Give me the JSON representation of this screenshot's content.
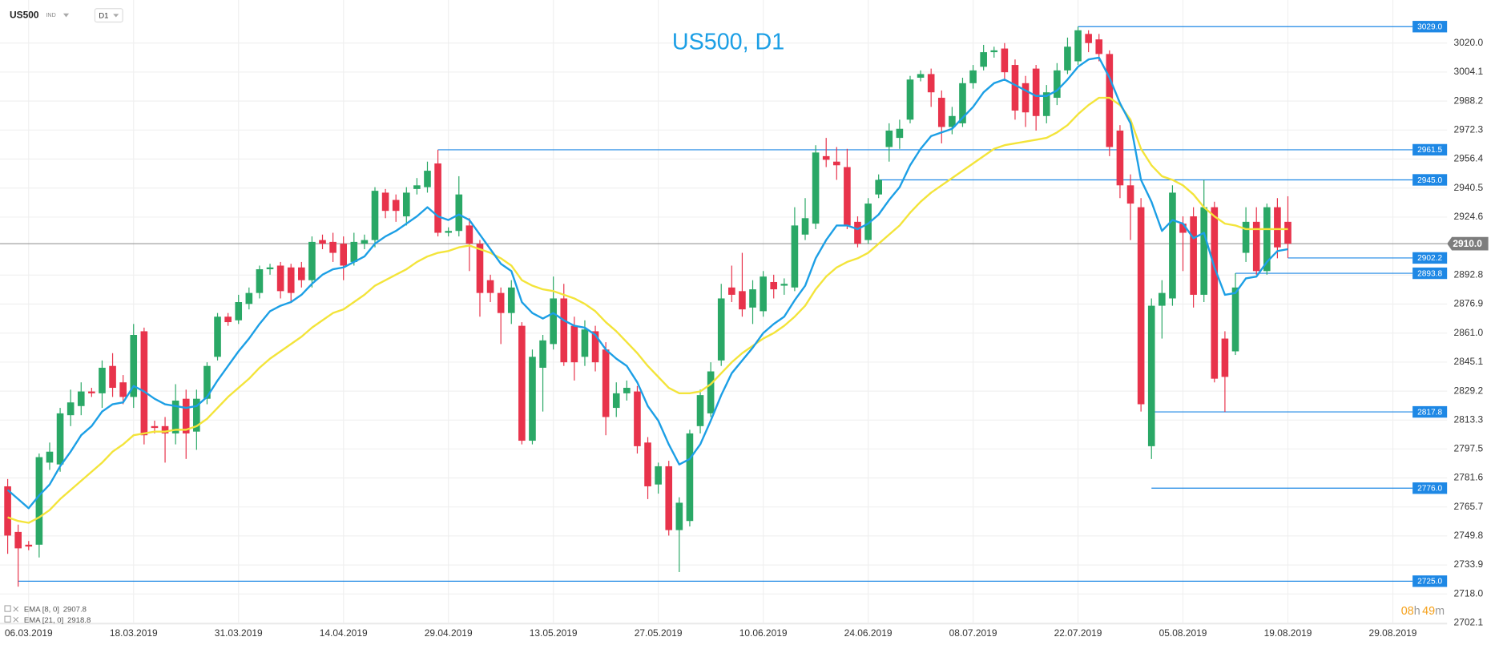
{
  "chart_data": {
    "type": "candlestick",
    "symbol": "US500",
    "symbol_type": "IND",
    "timeframe": "D1",
    "title": "US500, D1",
    "up_color": "#2aa866",
    "down_color": "#e8334b",
    "ylim": [
      2702.1,
      3043.6
    ],
    "yticks": [
      {
        "value": 3020.0,
        "label": "3020.0"
      },
      3004.1,
      2988.2,
      2972.3,
      2956.4,
      2940.5,
      2924.6,
      2892.8,
      2876.9,
      {
        "value": 2861.0,
        "label": "2861.0"
      },
      2845.1,
      2829.2,
      2813.3,
      2797.5,
      2781.6,
      2765.7,
      2749.8,
      2733.9,
      {
        "value": 2718.0,
        "label": "2718.0"
      },
      2702.1
    ],
    "xticks": [
      {
        "value": 2,
        "label": "06.03.2019"
      },
      {
        "value": 12,
        "label": "18.03.2019"
      },
      {
        "value": 22,
        "label": "31.03.2019"
      },
      {
        "value": 32,
        "label": "14.04.2019"
      },
      {
        "value": 42,
        "label": "29.04.2019"
      },
      {
        "value": 52,
        "label": "13.05.2019"
      },
      {
        "value": 62,
        "label": "27.05.2019"
      },
      {
        "value": 72,
        "label": "10.06.2019"
      },
      {
        "value": 82,
        "label": "24.06.2019"
      },
      {
        "value": 92,
        "label": "08.07.2019"
      },
      {
        "value": 102,
        "label": "22.07.2019"
      },
      {
        "value": 112,
        "label": "05.08.2019"
      },
      {
        "value": 122,
        "label": "19.08.2019"
      },
      {
        "value": 132,
        "label": "29.08.2019"
      }
    ],
    "open": [
      2777,
      2752,
      2745,
      2745,
      2790,
      2789,
      2816,
      2821,
      2829,
      2828,
      2843,
      2834,
      2826,
      2862,
      2810,
      2810,
      2806,
      2825,
      2807,
      2825,
      2848,
      2870,
      2868,
      2877,
      2883,
      2896,
      2898,
      2897,
      2897,
      2890,
      2912,
      2911,
      2910,
      2900,
      2910,
      2912,
      2938,
      2934,
      2925,
      2940,
      2941,
      2954,
      2916,
      2917,
      2920,
      2910,
      2890,
      2883,
      2872,
      2865,
      2802,
      2842,
      2855,
      2880,
      2865,
      2848,
      2862,
      2852,
      2820,
      2828,
      2829,
      2801,
      2778,
      2788,
      2753,
      2758,
      2810,
      2817,
      2846,
      2886,
      2884,
      2875,
      2873,
      2889,
      2887,
      2886,
      2915,
      2921,
      2958,
      2955,
      2952,
      2922,
      2912,
      2937,
      2963,
      2968,
      2978,
      3001,
      3003,
      2990,
      2974,
      2976,
      2998,
      3007,
      3015,
      3017,
      3008,
      2998,
      3006,
      2980,
      2990,
      3005,
      3010,
      3025,
      3022,
      3014,
      2972,
      2942,
      2930,
      2799,
      2876,
      2880,
      2921,
      2925,
      2882,
      2930,
      2858,
      2851,
      2905,
      2922,
      2895,
      2930,
      2922
    ],
    "high": [
      2781,
      2756,
      2747,
      2795,
      2801,
      2820,
      2830,
      2834,
      2831,
      2846,
      2850,
      2838,
      2866,
      2864,
      2813,
      2815,
      2833,
      2830,
      2830,
      2845,
      2872,
      2872,
      2882,
      2886,
      2898,
      2899,
      2900,
      2899,
      2900,
      2914,
      2915,
      2916,
      2914,
      2916,
      2915,
      2941,
      2940,
      2937,
      2941,
      2946,
      2955,
      2961.5,
      2919,
      2947,
      2924,
      2912,
      2893,
      2886,
      2890,
      2867,
      2852,
      2860,
      2892,
      2888,
      2870,
      2868,
      2865,
      2856,
      2834,
      2835,
      2832,
      2804,
      2790,
      2791,
      2771,
      2808,
      2830,
      2845,
      2888,
      2898,
      2905,
      2890,
      2895,
      2893,
      2891,
      2930,
      2935,
      2964,
      2968,
      2963,
      2962,
      2925,
      2935,
      2948,
      2976,
      2978,
      3002,
      3005,
      3006,
      2994,
      2985,
      3001,
      3008,
      3019,
      3018,
      3020,
      3011,
      3002,
      3008,
      2997,
      3009,
      3023,
      3029,
      3027,
      3025,
      3016,
      2975,
      2948,
      2935,
      2880,
      2890,
      2942,
      2925,
      2930,
      2945,
      2933,
      2862,
      2893.8,
      2930,
      2930,
      2932,
      2935,
      2936
    ],
    "low": [
      2740,
      2722,
      2742,
      2738,
      2786,
      2785,
      2810,
      2816,
      2826,
      2820,
      2826,
      2822,
      2820,
      2800,
      2806,
      2790,
      2800,
      2792,
      2797,
      2822,
      2846,
      2865,
      2866,
      2874,
      2880,
      2893,
      2880,
      2878,
      2886,
      2886,
      2907,
      2900,
      2890,
      2898,
      2907,
      2908,
      2924,
      2922,
      2920,
      2937,
      2938,
      2914,
      2914,
      2914,
      2895,
      2870,
      2878,
      2855,
      2866,
      2800,
      2800,
      2818,
      2852,
      2843,
      2835,
      2843,
      2840,
      2805,
      2815,
      2824,
      2795,
      2770,
      2773,
      2750,
      2730,
      2755,
      2806,
      2815,
      2843,
      2878,
      2870,
      2866,
      2870,
      2880,
      2882,
      2884,
      2912,
      2918,
      2952,
      2945,
      2918,
      2908,
      2910,
      2935,
      2955,
      2962,
      2976,
      2999,
      2985,
      2965,
      2970,
      2974,
      2995,
      3005,
      3012,
      3000,
      2978,
      2974,
      2972,
      2976,
      2986,
      3003,
      3008,
      3015,
      3010,
      2958,
      2935,
      2912,
      2818,
      2792,
      2858,
      2876,
      2895,
      2875,
      2878,
      2834,
      2817.8,
      2849,
      2900,
      2893,
      2893,
      2902,
      2902.2
    ],
    "close": [
      2750,
      2743,
      2744,
      2793,
      2796,
      2817,
      2823,
      2829,
      2828,
      2842,
      2831,
      2826,
      2860,
      2805,
      2809,
      2806,
      2824,
      2806,
      2825,
      2843,
      2870,
      2867,
      2878,
      2883,
      2896,
      2897,
      2884,
      2883,
      2890,
      2911,
      2910,
      2905,
      2898,
      2911,
      2912,
      2939,
      2928,
      2928,
      2938,
      2942,
      2950,
      2916,
      2917,
      2937,
      2910,
      2883,
      2883,
      2872,
      2886,
      2802,
      2848,
      2857,
      2880,
      2845,
      2845,
      2863,
      2845,
      2815,
      2828,
      2831,
      2799,
      2777,
      2788,
      2753,
      2768,
      2806,
      2827,
      2840,
      2880,
      2882,
      2874,
      2885,
      2892,
      2885,
      2888,
      2920,
      2924,
      2960,
      2956,
      2953,
      2920,
      2910,
      2932,
      2945,
      2972,
      2973,
      3000,
      3003,
      2993,
      2974,
      2980,
      2998,
      3005,
      3015,
      3016,
      3004,
      2983,
      2982,
      2980,
      2993,
      3005,
      3018,
      3027,
      3020,
      3014,
      2963,
      2942,
      2932,
      2822,
      2876,
      2883,
      2938,
      2916,
      2882,
      2930,
      2836,
      2837,
      2886,
      2922,
      2895,
      2930,
      2908,
      2910
    ],
    "series": [
      {
        "name": "EMA [8, 0]",
        "legend_value": 2907.8,
        "color": "#1c9fe5",
        "values": [
          2775,
          2770,
          2765,
          2772,
          2778,
          2788,
          2796,
          2805,
          2810,
          2818,
          2822,
          2823,
          2832,
          2829,
          2825,
          2822,
          2821,
          2820,
          2821,
          2826,
          2835,
          2843,
          2851,
          2858,
          2866,
          2873,
          2876,
          2878,
          2882,
          2888,
          2893,
          2896,
          2897,
          2900,
          2903,
          2910,
          2914,
          2917,
          2921,
          2925,
          2930,
          2925,
          2923,
          2926,
          2923,
          2915,
          2907,
          2899,
          2895,
          2878,
          2872,
          2869,
          2872,
          2868,
          2865,
          2864,
          2860,
          2852,
          2847,
          2843,
          2834,
          2821,
          2813,
          2800,
          2789,
          2792,
          2800,
          2813,
          2827,
          2839,
          2846,
          2853,
          2861,
          2866,
          2870,
          2879,
          2887,
          2902,
          2912,
          2920,
          2920,
          2918,
          2921,
          2926,
          2934,
          2941,
          2953,
          2962,
          2969,
          2971,
          2973,
          2979,
          2985,
          2993,
          2998,
          3000,
          2997,
          2994,
          2991,
          2991,
          2994,
          3000,
          3007,
          3011,
          3012,
          3001,
          2987,
          2976,
          2945,
          2933,
          2917,
          2923,
          2921,
          2913,
          2916,
          2897,
          2882,
          2883,
          2891,
          2892,
          2900,
          2906,
          2907
        ]
      },
      {
        "name": "EMA [21, 0]",
        "legend_value": 2918.8,
        "color": "#f3e43a",
        "values": [
          2760,
          2758,
          2757,
          2760,
          2764,
          2770,
          2775,
          2780,
          2785,
          2790,
          2796,
          2800,
          2805,
          2806,
          2807,
          2807,
          2808,
          2808,
          2810,
          2814,
          2820,
          2826,
          2831,
          2836,
          2842,
          2847,
          2851,
          2855,
          2859,
          2864,
          2868,
          2872,
          2874,
          2878,
          2882,
          2887,
          2890,
          2893,
          2896,
          2900,
          2903,
          2905,
          2906,
          2908,
          2909,
          2907,
          2905,
          2902,
          2898,
          2890,
          2887,
          2885,
          2884,
          2882,
          2880,
          2877,
          2873,
          2867,
          2862,
          2856,
          2850,
          2843,
          2837,
          2831,
          2828,
          2828,
          2829,
          2833,
          2839,
          2845,
          2850,
          2854,
          2858,
          2861,
          2865,
          2870,
          2876,
          2885,
          2892,
          2897,
          2900,
          2902,
          2905,
          2910,
          2915,
          2920,
          2927,
          2933,
          2938,
          2942,
          2946,
          2950,
          2954,
          2958,
          2962,
          2964,
          2965,
          2966,
          2967,
          2968,
          2971,
          2975,
          2981,
          2986,
          2990,
          2990,
          2986,
          2978,
          2962,
          2953,
          2947,
          2945,
          2942,
          2937,
          2930,
          2925,
          2921,
          2920,
          2918,
          2918,
          2918,
          2918,
          2918
        ]
      }
    ],
    "levels": [
      {
        "value": 3029.0,
        "label": "3029.0"
      },
      {
        "value": 2961.5,
        "label": "2961.5"
      },
      {
        "value": 2945.0,
        "label": "2945.0"
      },
      {
        "value": 2902.2,
        "label": "2902.2"
      },
      {
        "value": 2893.8,
        "label": "2893.8"
      },
      {
        "value": 2817.8,
        "label": "2817.8"
      },
      {
        "value": 2776.0,
        "label": "2776.0"
      },
      {
        "value": 2725.0,
        "label": "2725.0"
      }
    ],
    "level_color": "#1e88e5",
    "last_price": {
      "value": 2910.0,
      "label": "2910.0"
    },
    "countdown": {
      "hours": "08",
      "hours_unit": "h",
      "minutes": "49",
      "minutes_unit": "m"
    }
  }
}
